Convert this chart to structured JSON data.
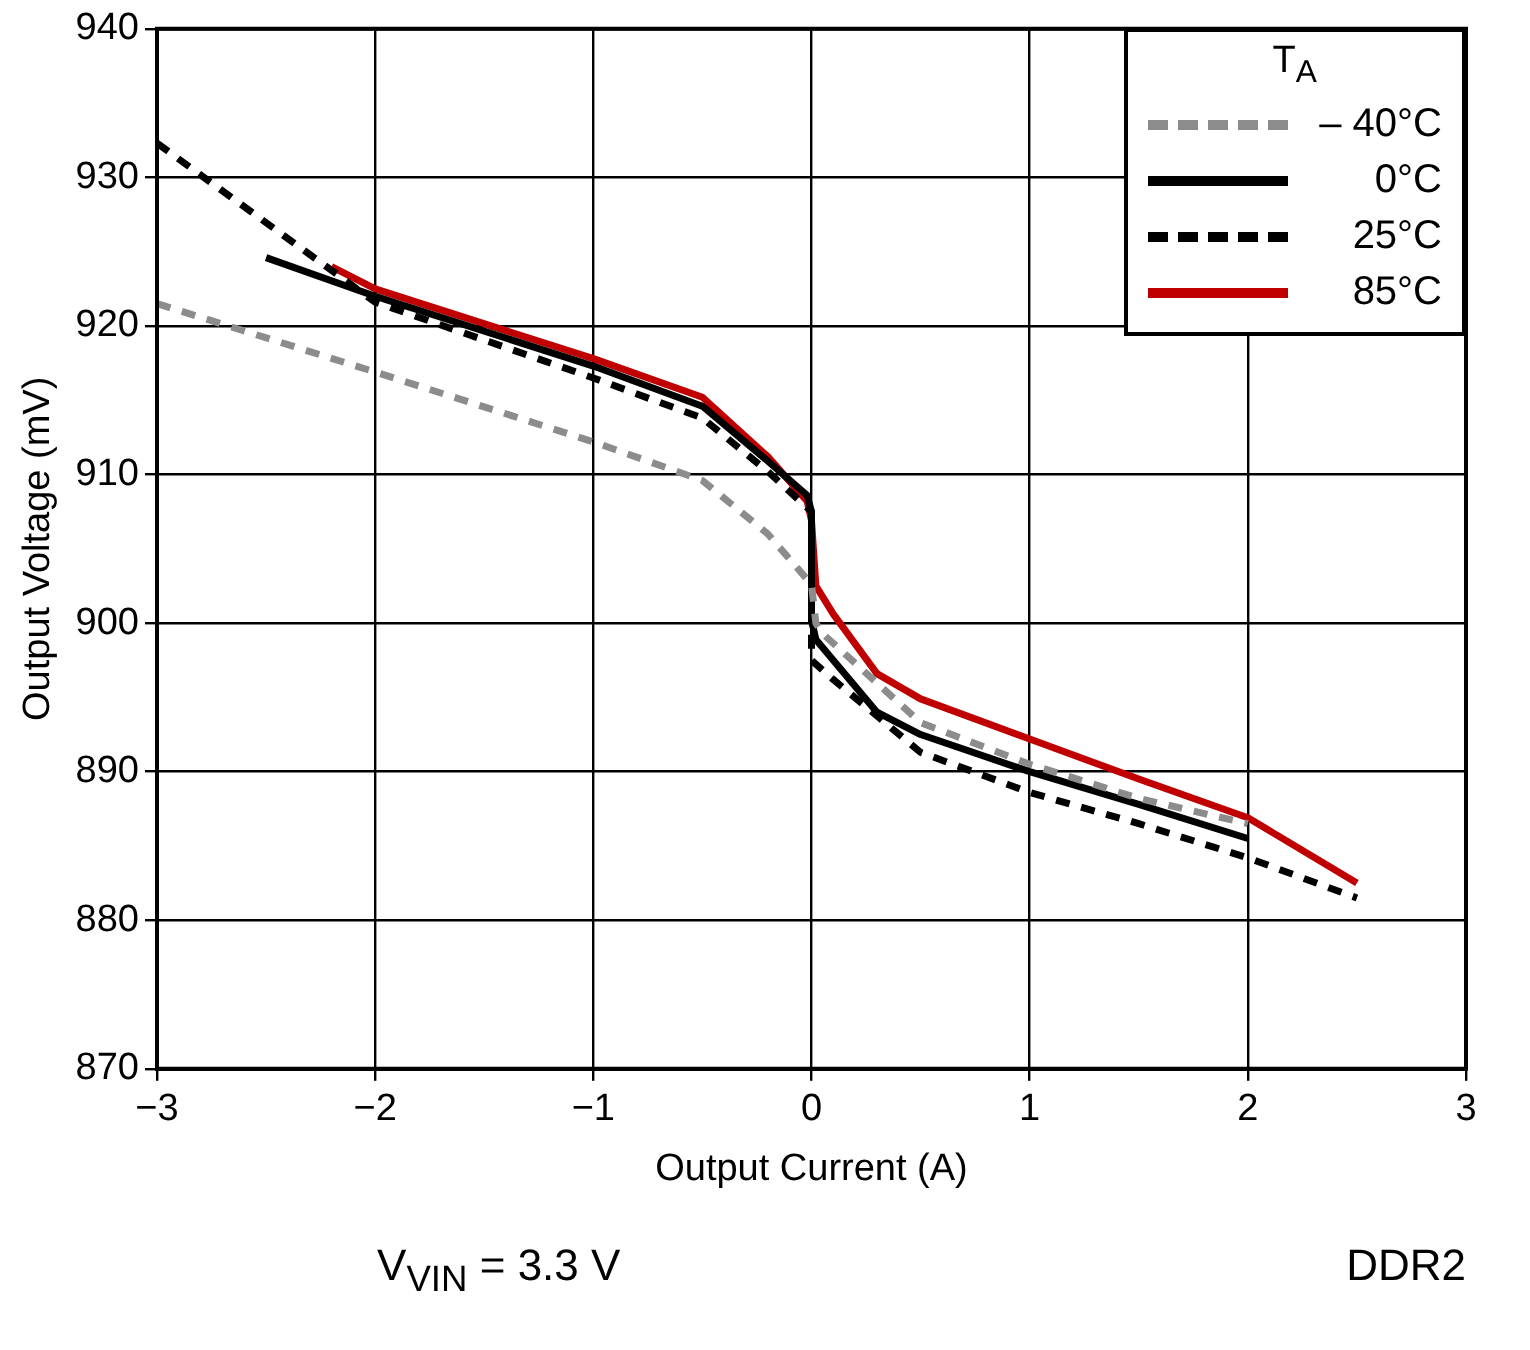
{
  "chart_data": {
    "type": "line",
    "xlabel": "Output Current (A)",
    "ylabel": "Output Voltage (mV)",
    "legend_title": "T$_{A}$",
    "legend": "top right",
    "grid": true,
    "marker": "none",
    "xlim": [
      -3,
      3
    ],
    "xticks": [
      {
        "value": -3,
        "label": "−3"
      },
      {
        "value": -2,
        "label": "−2"
      },
      {
        "value": -1,
        "label": "−1"
      },
      0,
      1,
      2,
      3
    ],
    "ylim": [
      870,
      940
    ],
    "yticks": [
      870,
      880,
      890,
      900,
      910,
      920,
      930,
      940
    ],
    "series": [
      {
        "name": "– 40°C",
        "color": "#8c8c8c",
        "line_style": "dashed",
        "x": [
          -3,
          -2,
          -1,
          -0.5,
          -0.2,
          0,
          0.02,
          0.05,
          0.5,
          1,
          1.5,
          2
        ],
        "values": [
          921.5,
          916.9,
          912.2,
          909.6,
          906,
          902.6,
          900,
          899.3,
          893.3,
          890.5,
          888.2,
          886.5
        ]
      },
      {
        "name": "0°C",
        "color": "#000000",
        "line_style": "solid",
        "x": [
          -2.5,
          -2,
          -1,
          -0.5,
          -0.2,
          -0.02,
          0,
          0,
          0.02,
          0.3,
          0.5,
          1,
          1.5,
          2
        ],
        "values": [
          924.6,
          922,
          917.3,
          914.6,
          910.9,
          908.6,
          907.5,
          900.2,
          898.9,
          894,
          892.5,
          890,
          887.8,
          885.5
        ]
      },
      {
        "name": "25°C",
        "color": "#000000",
        "line_style": "dashed",
        "x": [
          -3,
          -2,
          -1,
          -0.5,
          -0.2,
          0,
          0,
          0.1,
          0.5,
          1,
          1.5,
          2,
          2.5
        ],
        "values": [
          932.3,
          921.6,
          916.5,
          913.8,
          910.2,
          907.5,
          897.5,
          896.2,
          891.3,
          888.6,
          886.5,
          884.2,
          881.5
        ]
      },
      {
        "name": "85°C",
        "color": "#c00000",
        "line_style": "solid",
        "x": [
          -2.2,
          -2,
          -1,
          -0.5,
          -0.2,
          -0.02,
          0,
          0.02,
          0.1,
          0.3,
          0.5,
          1,
          1.5,
          2,
          2.5
        ],
        "values": [
          924,
          922.5,
          917.8,
          915.2,
          911.2,
          908.2,
          906.9,
          902.5,
          900.6,
          896.6,
          894.9,
          892.2,
          889.5,
          886.9,
          882.5
        ]
      }
    ],
    "annotations": [
      "V$_{VIN}$ = 3.3 V",
      "DDR2"
    ]
  }
}
